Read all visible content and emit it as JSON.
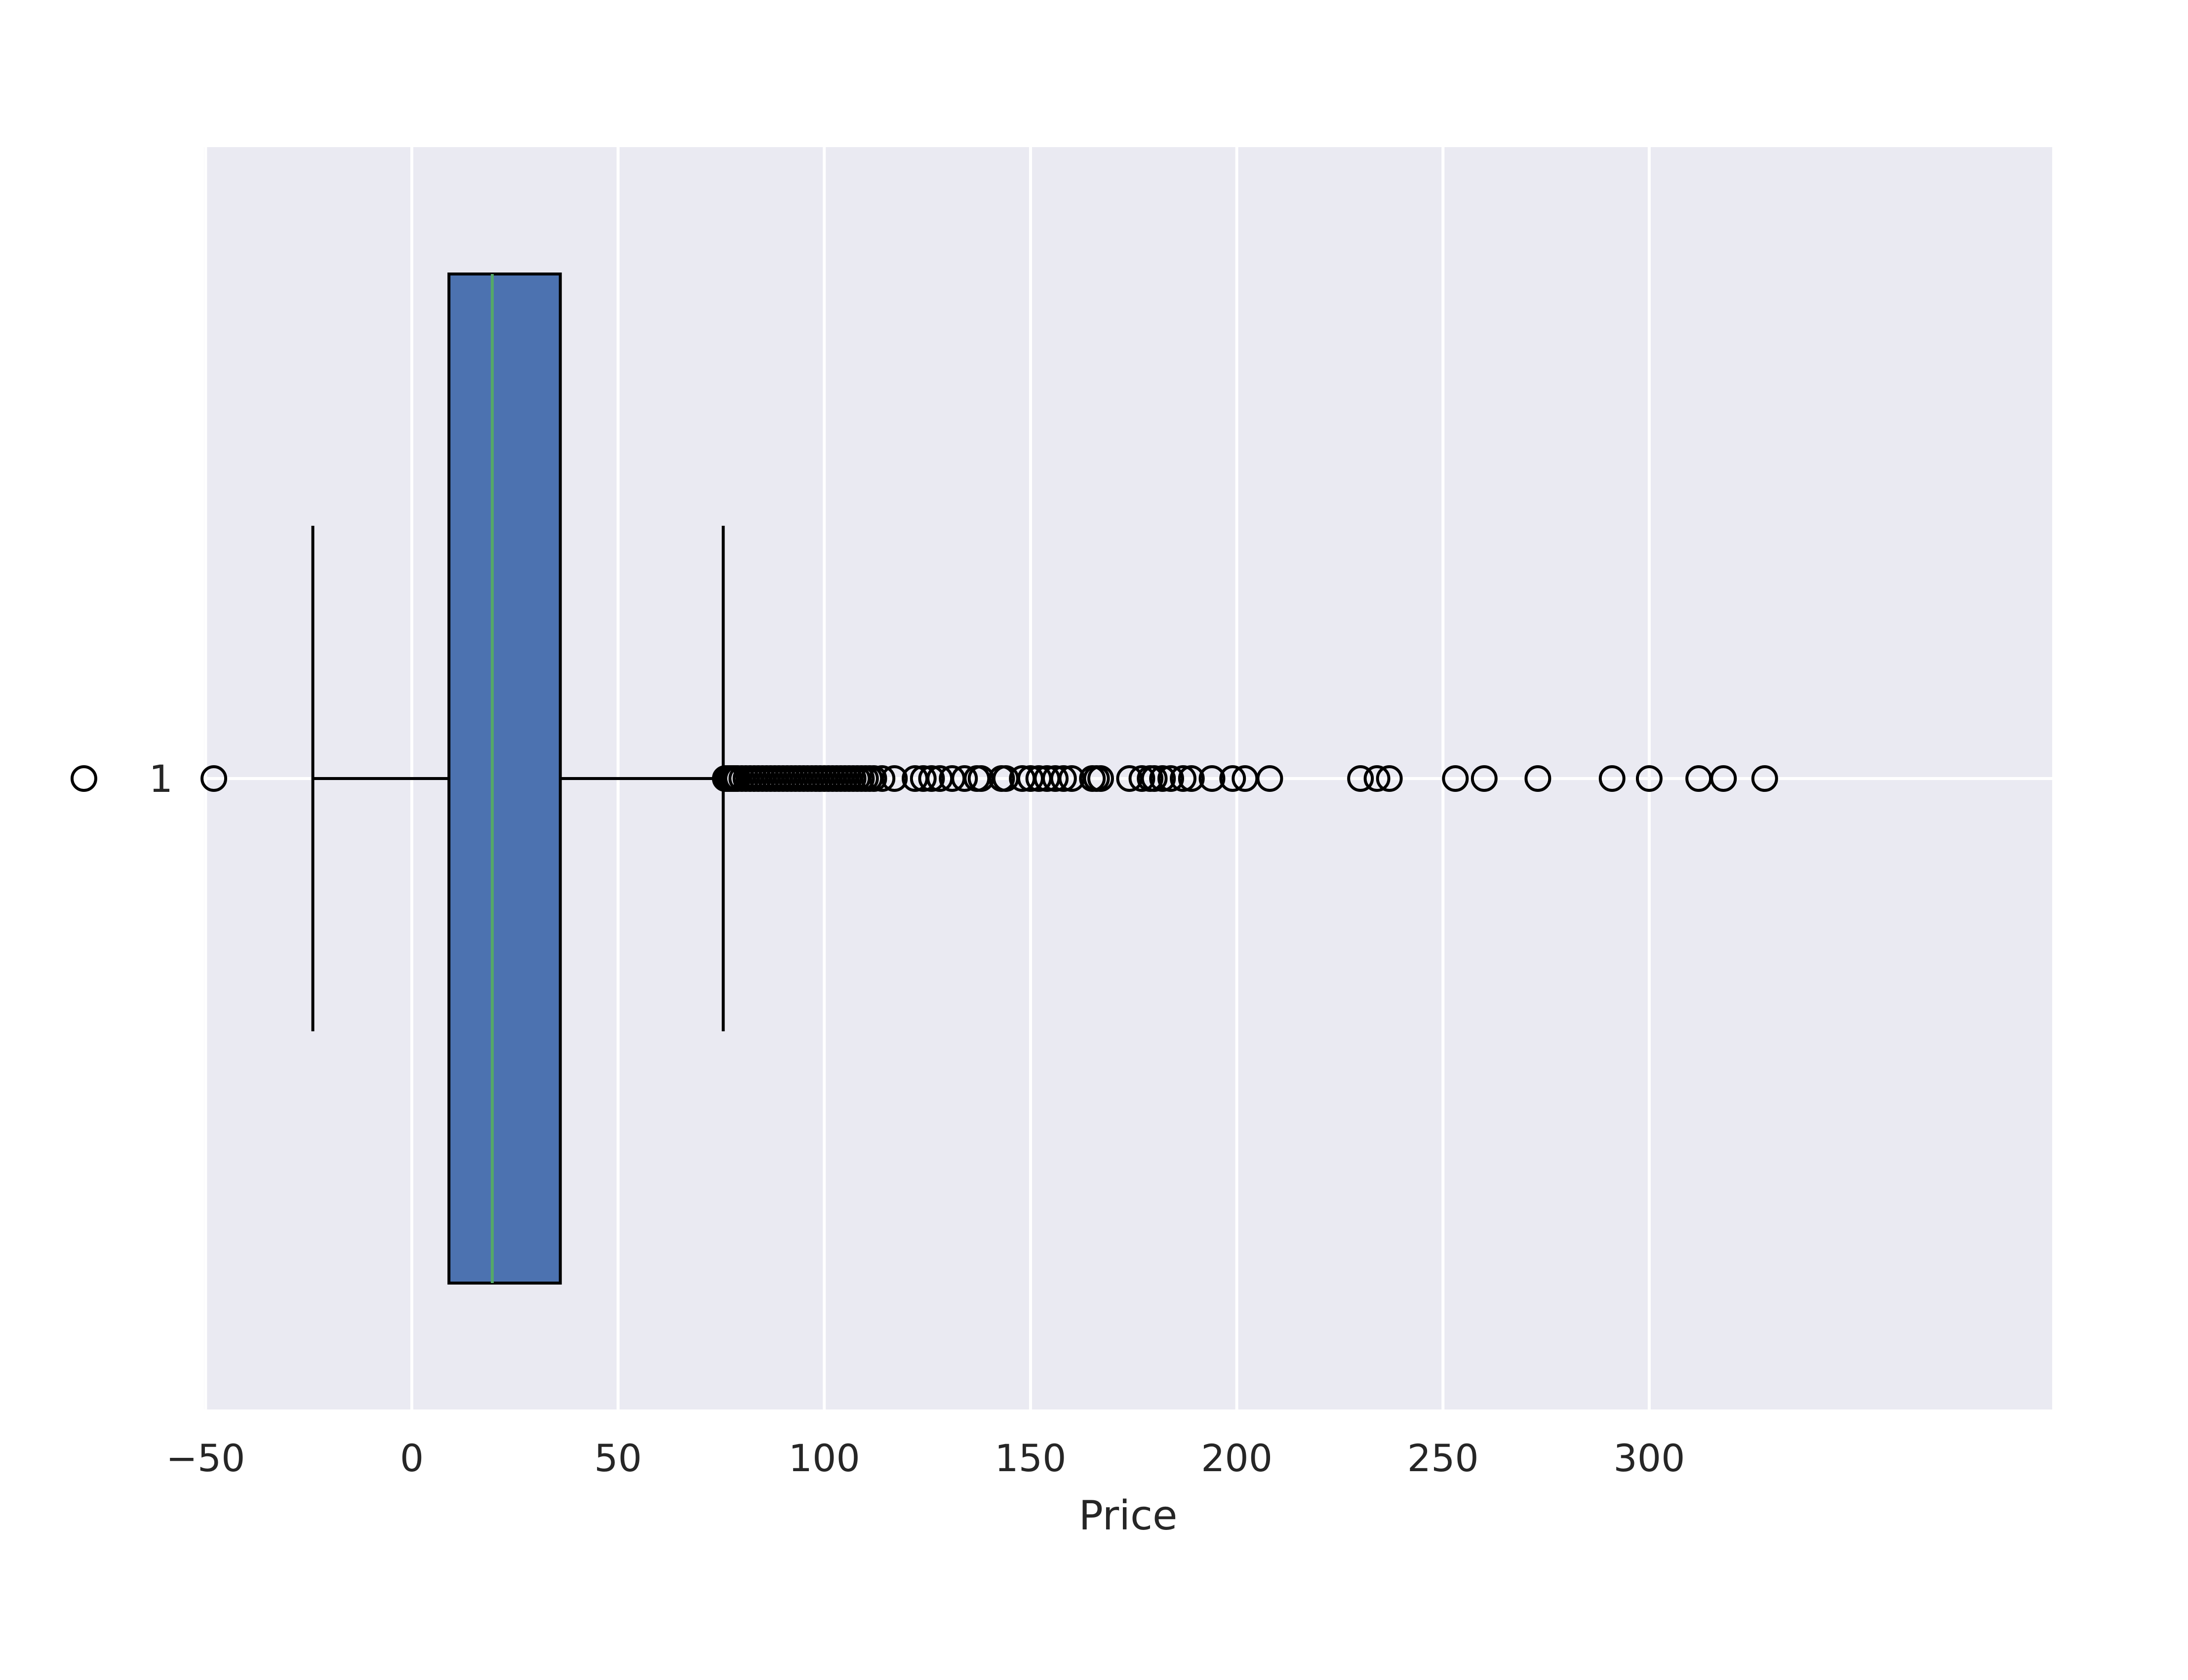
{
  "chart_data": {
    "type": "box",
    "orientation": "horizontal",
    "xlabel": "Price",
    "ylabel": "",
    "xlim": [
      -100,
      348
    ],
    "x_ticks": [
      -50,
      0,
      50,
      100,
      150,
      200,
      250,
      300
    ],
    "x_tick_labels": [
      "−50",
      "0",
      "50",
      "100",
      "150",
      "200",
      "250",
      "300"
    ],
    "y_tick_labels": [
      "1"
    ],
    "grid": true,
    "background_color": "#eaeaf2",
    "grid_color": "#ffffff",
    "series": [
      {
        "position": 1,
        "whisker_low": -24,
        "q1": 9,
        "median": 19.5,
        "q3": 36,
        "whisker_high": 75.5,
        "box_color": "#4c72b0",
        "median_color": "#55a868",
        "outliers": [
          -79.5,
          -48,
          76,
          76.5,
          77,
          77.5,
          78,
          78.5,
          79,
          80,
          81,
          82,
          83,
          84,
          85,
          86,
          87,
          88,
          89,
          90,
          91,
          92,
          93,
          94,
          95,
          96,
          97,
          98,
          99,
          100,
          101,
          102,
          103,
          104,
          105,
          106,
          107,
          108,
          109,
          110,
          111,
          112,
          114,
          117,
          122,
          124,
          126,
          128,
          131,
          134,
          137,
          138,
          143,
          144,
          148,
          150,
          152,
          154,
          156,
          158,
          160,
          165,
          166,
          167,
          174,
          177,
          179,
          180,
          182,
          184,
          187,
          189,
          194,
          199,
          202,
          208,
          230,
          234,
          237,
          253,
          260,
          273,
          291,
          300,
          312,
          318,
          328
        ]
      }
    ]
  }
}
